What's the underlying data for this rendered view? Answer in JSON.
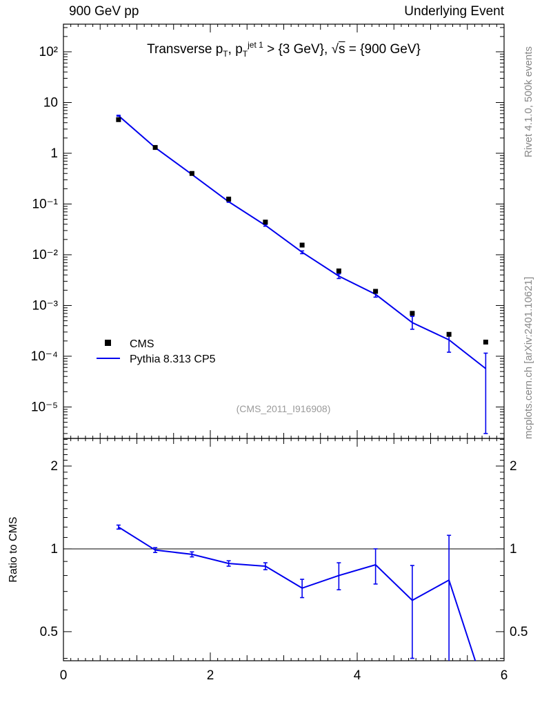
{
  "header": {
    "left": "900 GeV pp",
    "right": "Underlying Event"
  },
  "side_notes": {
    "top": "Rivet 4.1.0,  500k events",
    "bottom": "mcplots.cern.ch [arXiv:2401.10621]"
  },
  "watermark": "(CMS_2011_I916908)",
  "title_parts": [
    {
      "t": "Transverse p"
    },
    {
      "t": "T",
      "s": "sub"
    },
    {
      "t": ", p"
    },
    {
      "t": "T",
      "s": "sub"
    },
    {
      "t": "jet 1",
      "s": "sup"
    },
    {
      "t": " > {3 GeV}, "
    },
    {
      "t": "√"
    },
    {
      "t": "s",
      "s": "ov"
    },
    {
      "t": " = {900 GeV}"
    }
  ],
  "ratio_ylabel": "Ratio to CMS",
  "legend": [
    {
      "label": "CMS",
      "marker": "square",
      "color": "#000000"
    },
    {
      "label": "Pythia 8.313 CP5",
      "marker": "line",
      "color": "#0000ee"
    }
  ],
  "colors": {
    "data": "#000000",
    "mc": "#0000ee",
    "ref_line": "#000000"
  },
  "chart_data": {
    "type": "line",
    "title": "Transverse pT, pT jet1 > {3 GeV}, sqrt(s) = {900 GeV}",
    "x": [
      0.75,
      1.25,
      1.75,
      2.25,
      2.75,
      3.25,
      3.75,
      4.25,
      4.75,
      5.25,
      5.75
    ],
    "series": [
      {
        "name": "CMS",
        "marker": "square",
        "color": "#000000",
        "values": [
          4.6,
          1.3,
          0.4,
          0.125,
          0.044,
          0.0155,
          0.0048,
          0.0019,
          0.0007,
          0.00027,
          0.00019
        ]
      },
      {
        "name": "Pythia 8.313 CP5",
        "marker": "line",
        "color": "#0000ee",
        "values": [
          5.5,
          1.29,
          0.382,
          0.111,
          0.038,
          0.0112,
          0.0038,
          0.00166,
          0.00046,
          0.00021,
          5.7e-05
        ],
        "err_lo": [
          5.4,
          1.27,
          0.375,
          0.108,
          0.0365,
          0.0105,
          0.0034,
          0.00146,
          0.00034,
          0.00012,
          3e-06
        ],
        "err_hi": [
          5.6,
          1.31,
          0.389,
          0.114,
          0.0395,
          0.0119,
          0.0042,
          0.00186,
          0.00061,
          0.00026,
          0.000115
        ]
      }
    ],
    "ratio": {
      "name": "Pythia 8.313 CP5 / CMS",
      "ref": 1,
      "values": [
        1.2,
        0.99,
        0.955,
        0.885,
        0.865,
        0.72,
        0.8,
        0.875,
        0.65,
        0.77,
        0.3
      ],
      "err_lo": [
        1.18,
        0.97,
        0.935,
        0.865,
        0.84,
        0.665,
        0.71,
        0.745,
        0.4,
        0.35,
        0.3
      ],
      "err_hi": [
        1.22,
        1.01,
        0.975,
        0.905,
        0.89,
        0.775,
        0.89,
        1.0,
        0.87,
        1.12,
        0.3
      ]
    },
    "axes": {
      "x": {
        "range": [
          0,
          6
        ],
        "ticks": [
          0,
          2,
          4,
          6
        ],
        "tick_labels": [
          "0",
          "2",
          "4",
          "6"
        ]
      },
      "y_main": {
        "scale": "log",
        "range": [
          2.4e-06,
          350
        ],
        "ticks": [
          100,
          10,
          1,
          0.1,
          0.01,
          0.001,
          0.0001,
          1e-05
        ],
        "tick_labels": [
          "10²",
          "10",
          "1",
          "10⁻¹",
          "10⁻²",
          "10⁻³",
          "10⁻⁴",
          "10⁻⁵"
        ]
      },
      "y_ratio": {
        "scale": "log",
        "range": [
          0.392,
          2.52
        ],
        "ticks": [
          2,
          1,
          0.5
        ],
        "tick_labels": [
          "2",
          "1",
          "0.5"
        ]
      }
    },
    "legend_position": "left-lower-main-panel",
    "grid": false
  }
}
